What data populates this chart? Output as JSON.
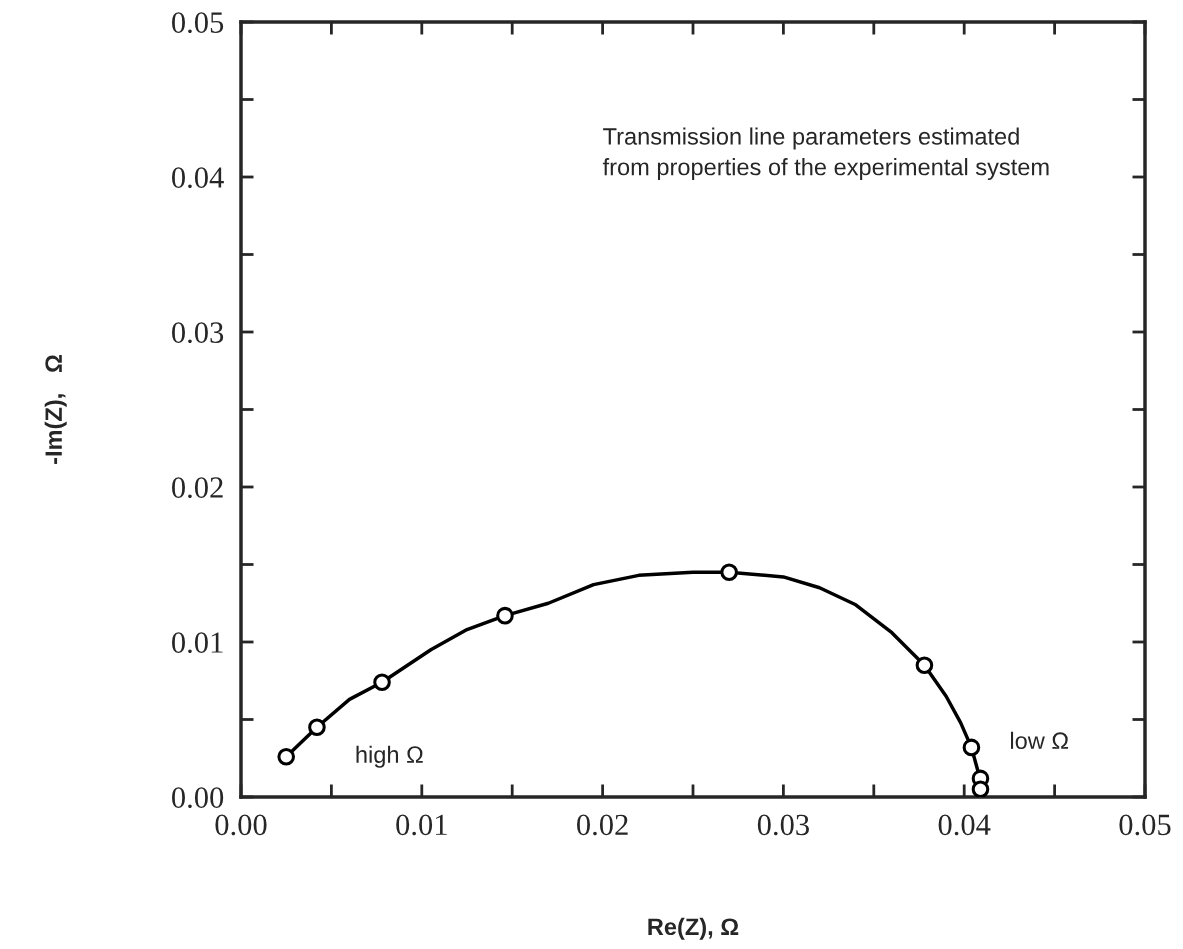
{
  "chart_data": {
    "type": "scatter",
    "xlabel": "Re(Z), Ω",
    "ylabel": "-Im(Z),   Ω",
    "annotations": [
      "Transmission line parameters estimated\nfrom properties of the experimental system",
      "high Ω",
      "low Ω"
    ],
    "series": [
      {
        "type": "line",
        "color": "#000000",
        "marker": "none",
        "line_style": "solid",
        "x": [
          0.0025,
          0.0042,
          0.006,
          0.0078,
          0.0105,
          0.0125,
          0.0146,
          0.017,
          0.0195,
          0.022,
          0.025,
          0.027,
          0.03,
          0.032,
          0.034,
          0.036,
          0.0378,
          0.039,
          0.0398,
          0.0404,
          0.0408,
          0.0409
        ],
        "values": [
          0.0026,
          0.0045,
          0.0063,
          0.0074,
          0.0095,
          0.0108,
          0.0117,
          0.0125,
          0.0137,
          0.0143,
          0.0145,
          0.0145,
          0.0142,
          0.0135,
          0.0124,
          0.0106,
          0.0085,
          0.0065,
          0.0048,
          0.0032,
          0.0015,
          0.0005
        ]
      },
      {
        "color": "#000000",
        "marker": "circle",
        "x": [
          0.0025,
          0.0042,
          0.0078,
          0.0146,
          0.027,
          0.0378,
          0.0404,
          0.0409,
          0.0409
        ],
        "values": [
          0.0026,
          0.0045,
          0.0074,
          0.0117,
          0.0145,
          0.0085,
          0.0032,
          0.0012,
          0.0005
        ]
      }
    ],
    "xlim": [
      0,
      0.05
    ],
    "ylim": [
      0,
      0.05
    ],
    "xticks": [
      {
        "value": 0,
        "label": "0.00"
      },
      {
        "value": 0.005,
        "label": null
      },
      {
        "value": 0.01,
        "label": "0.01"
      },
      {
        "value": 0.015,
        "label": null
      },
      {
        "value": 0.02,
        "label": "0.02"
      },
      {
        "value": 0.025,
        "label": null
      },
      {
        "value": 0.03,
        "label": "0.03"
      },
      {
        "value": 0.035,
        "label": null
      },
      {
        "value": 0.04,
        "label": "0.04"
      },
      {
        "value": 0.045,
        "label": null
      },
      {
        "value": 0.05,
        "label": "0.05"
      }
    ],
    "yticks": [
      {
        "value": 0,
        "label": "0.00"
      },
      {
        "value": 0.005,
        "label": null
      },
      {
        "value": 0.01,
        "label": "0.01"
      },
      {
        "value": 0.015,
        "label": null
      },
      {
        "value": 0.02,
        "label": "0.02"
      },
      {
        "value": 0.025,
        "label": null
      },
      {
        "value": 0.03,
        "label": "0.03"
      },
      {
        "value": 0.035,
        "label": null
      },
      {
        "value": 0.04,
        "label": "0.04"
      },
      {
        "value": 0.045,
        "label": null
      },
      {
        "value": 0.05,
        "label": "0.05"
      }
    ],
    "grid": false,
    "legend": false
  }
}
